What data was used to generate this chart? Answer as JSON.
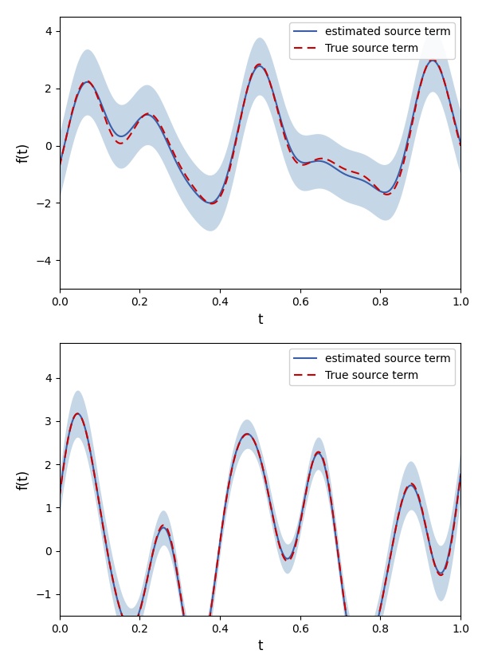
{
  "xlabel": "t",
  "ylabel": "f(t)",
  "line_color_est": "#3a5ea8",
  "line_color_true": "#cc0000",
  "fill_color": "#5b8db8",
  "fill_alpha": 0.35,
  "legend_est": "estimated source term",
  "legend_true": "True source term",
  "figsize": [
    6.1,
    8.4
  ],
  "dpi": 100
}
